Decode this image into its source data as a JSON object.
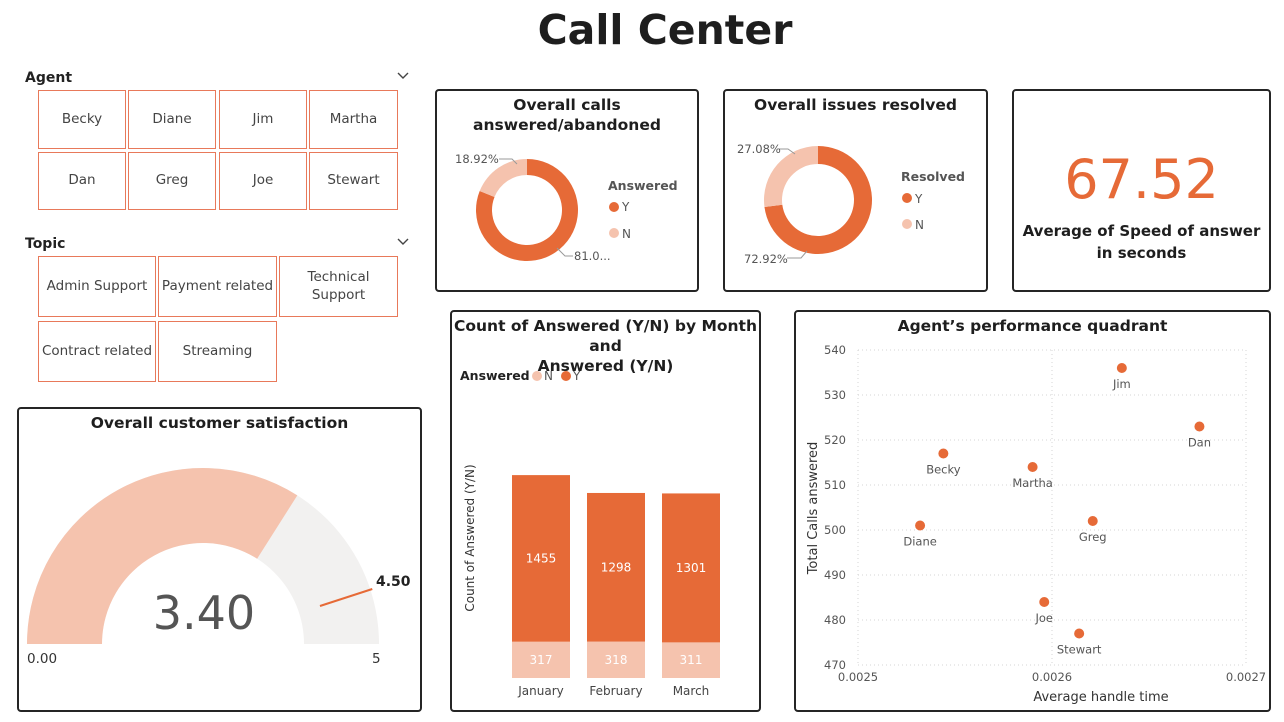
{
  "page": {
    "title": "Call Center"
  },
  "colors": {
    "accent": "#e66a37",
    "light": "#f5c3ae",
    "track": "#f2f1f0",
    "tile_border": "#e8795a"
  },
  "agent_slicer": {
    "header": "Agent",
    "items": [
      "Becky",
      "Diane",
      "Jim",
      "Martha",
      "Dan",
      "Greg",
      "Joe",
      "Stewart"
    ]
  },
  "topic_slicer": {
    "header": "Topic",
    "items": [
      "Admin Support",
      "Payment related",
      "Technical Support",
      "Contract related",
      "Streaming"
    ]
  },
  "answered_donut": {
    "title_line1": "Overall calls",
    "title_line2": "answered/abandoned",
    "legend_title": "Answered",
    "legend": [
      "Y",
      "N"
    ],
    "label_y": "81.0...",
    "label_n": "18.92%",
    "chart_data": {
      "type": "pie",
      "categories": [
        "Y",
        "N"
      ],
      "values": [
        81.08,
        18.92
      ]
    }
  },
  "resolved_donut": {
    "title": "Overall issues resolved",
    "legend_title": "Resolved",
    "legend": [
      "Y",
      "N"
    ],
    "label_y": "72.92%",
    "label_n": "27.08%",
    "chart_data": {
      "type": "pie",
      "categories": [
        "Y",
        "N"
      ],
      "values": [
        72.92,
        27.08
      ]
    }
  },
  "speed_card": {
    "value": "67.52",
    "label_line1": "Average of Speed of answer",
    "label_line2": "in seconds"
  },
  "satisfaction_gauge": {
    "title": "Overall customer satisfaction",
    "value_label": "3.40",
    "min_label": "0.00",
    "max_label": "5",
    "target_label": "4.50",
    "chart_data": {
      "type": "gauge",
      "value": 3.4,
      "min": 0,
      "max": 5,
      "target": 4.5
    }
  },
  "month_chart": {
    "title_line1": "Count of Answered (Y/N) by Month and",
    "title_line2": "Answered (Y/N)",
    "legend_title": "Answered",
    "legend": [
      "N",
      "Y"
    ],
    "ylabel": "Count of Answered (Y/N)",
    "chart_data": {
      "type": "bar",
      "stacked": true,
      "categories": [
        "January",
        "February",
        "March"
      ],
      "series": [
        {
          "name": "N",
          "values": [
            317,
            318,
            311
          ]
        },
        {
          "name": "Y",
          "values": [
            1455,
            1298,
            1301
          ]
        }
      ]
    }
  },
  "quadrant_chart": {
    "title": "Agent’s performance quadrant",
    "xlabel": "Average handle time",
    "ylabel": "Total Calls answered",
    "chart_data": {
      "type": "scatter",
      "xlim": [
        0.0025,
        0.0027
      ],
      "ylim": [
        470,
        540
      ],
      "x_ticks": [
        "0.0025",
        "0.0026",
        "0.0027"
      ],
      "y_ticks": [
        "470",
        "480",
        "490",
        "500",
        "510",
        "520",
        "530",
        "540"
      ],
      "points": [
        {
          "name": "Jim",
          "x": 0.002636,
          "y": 536
        },
        {
          "name": "Dan",
          "x": 0.002676,
          "y": 523
        },
        {
          "name": "Becky",
          "x": 0.002544,
          "y": 517
        },
        {
          "name": "Martha",
          "x": 0.00259,
          "y": 514
        },
        {
          "name": "Greg",
          "x": 0.002621,
          "y": 502
        },
        {
          "name": "Diane",
          "x": 0.002532,
          "y": 501
        },
        {
          "name": "Joe",
          "x": 0.002596,
          "y": 484
        },
        {
          "name": "Stewart",
          "x": 0.002614,
          "y": 477
        }
      ]
    }
  }
}
